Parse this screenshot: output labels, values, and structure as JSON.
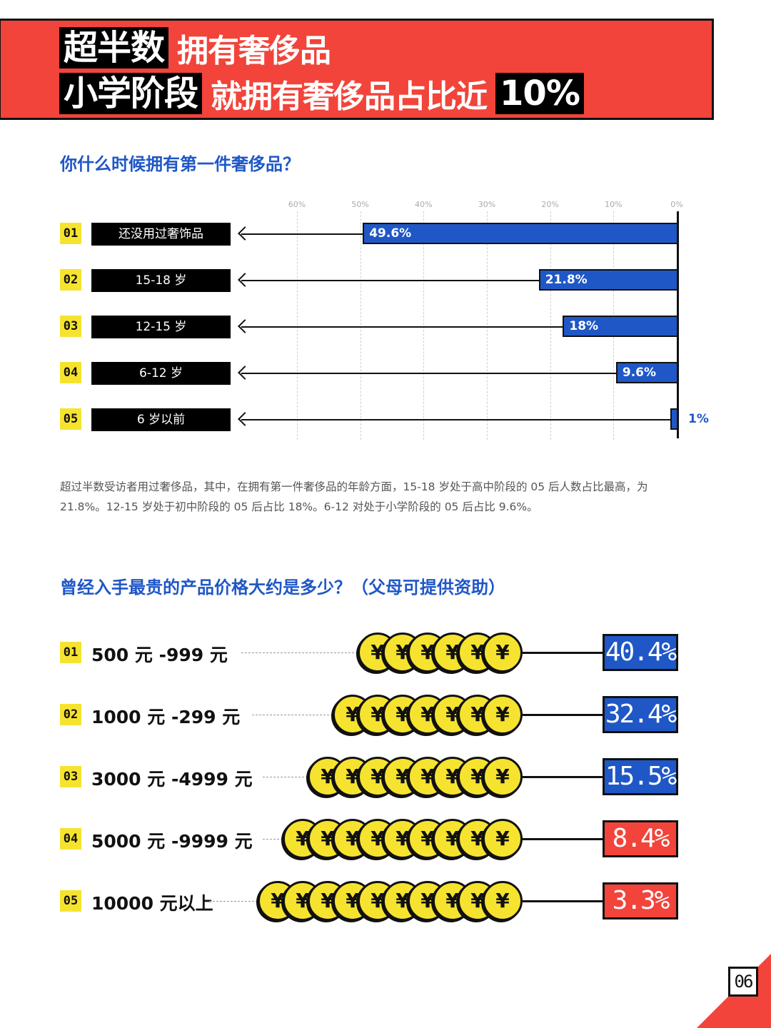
{
  "header": {
    "line1_highlight": "超半数",
    "line1_text": "拥有奢侈品",
    "line2_highlight": "小学阶段",
    "line2_text": "就拥有奢侈品占比近",
    "line2_percent": "10%"
  },
  "colors": {
    "accent_red": "#f2443a",
    "accent_blue": "#1f57c6",
    "badge_yellow": "#f6e32f"
  },
  "question1": "你什么时候拥有第一件奢侈品？",
  "chart_data": [
    {
      "type": "bar",
      "orientation": "horizontal",
      "direction": "right-to-left",
      "title": "你什么时候拥有第一件奢侈品？",
      "xlim": [
        0,
        60
      ],
      "x_ticks": [
        "60%",
        "50%",
        "40%",
        "30%",
        "20%",
        "10%",
        "0%"
      ],
      "grid": true,
      "categories": [
        "还没用过奢饰品",
        "15-18 岁",
        "12-15 岁",
        "6-12 岁",
        "6 岁以前"
      ],
      "numbers": [
        "01",
        "02",
        "03",
        "04",
        "05"
      ],
      "values": [
        49.6,
        21.8,
        18,
        9.6,
        1
      ],
      "value_labels": [
        "49.6%",
        "21.8%",
        "18%",
        "9.6%",
        "1%"
      ]
    },
    {
      "type": "bar",
      "orientation": "horizontal",
      "title": "曾经入手最贵的产品价格大约是多少？（父母可提供资助）",
      "categories": [
        "500 元 -999 元",
        "1000 元 -299 元",
        "3000 元 -4999 元",
        "5000 元 -9999 元",
        "10000 元以上"
      ],
      "numbers": [
        "01",
        "02",
        "03",
        "04",
        "05"
      ],
      "values": [
        40.4,
        32.4,
        15.5,
        8.4,
        3.3
      ],
      "value_labels": [
        "40.4%",
        "32.4%",
        "15.5%",
        "8.4%",
        "3.3%"
      ],
      "coin_counts": [
        6,
        7,
        8,
        9,
        10
      ],
      "coin_symbol": "¥",
      "box_colors": [
        "#1f57c6",
        "#1f57c6",
        "#1f57c6",
        "#f2443a",
        "#f2443a"
      ]
    }
  ],
  "paragraph": "超过半数受访者用过奢侈品，其中，在拥有第一件奢侈品的年龄方面，15-18 岁处于高中阶段的 05 后人数占比最高，为 21.8%。12-15 岁处于初中阶段的 05 后占比 18%。6-12 对处于小学阶段的 05 后占比 9.6%。",
  "question2": "曾经入手最贵的产品价格大约是多少？（父母可提供资助）",
  "page_number": "06"
}
